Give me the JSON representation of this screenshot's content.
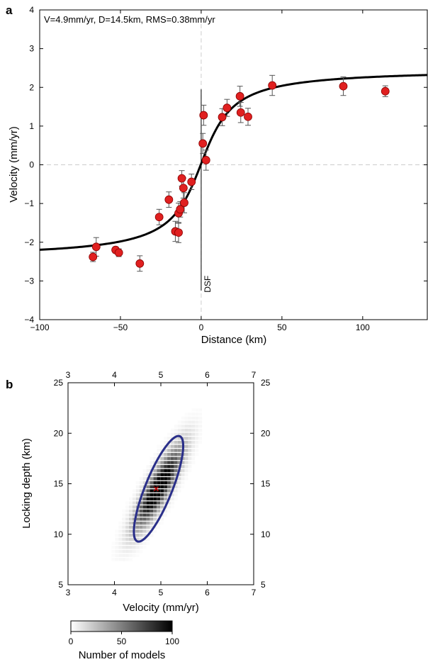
{
  "chart_data": [
    {
      "panel": "a",
      "type": "scatter",
      "annotation": "V=4.9mm/yr, D=14.5km, RMS=0.38mm/yr",
      "xlabel": "Distance (km)",
      "ylabel": "Velocity (mm/yr)",
      "xlim": [
        -100,
        140
      ],
      "ylim": [
        -4,
        4
      ],
      "xticks": [
        -100,
        -50,
        0,
        50,
        100
      ],
      "yticks": [
        -4,
        -3,
        -2,
        -1,
        0,
        1,
        2,
        3,
        4
      ],
      "fault_label": "DSF",
      "grid": false,
      "model_curve": {
        "v": 4.9,
        "d": 14.5,
        "offset": 0.03
      },
      "points": [
        {
          "x": -67,
          "y": -2.38,
          "err": 0.12
        },
        {
          "x": -65,
          "y": -2.12,
          "err": 0.24
        },
        {
          "x": -53,
          "y": -2.2,
          "err": 0.08
        },
        {
          "x": -51,
          "y": -2.27,
          "err": 0.1
        },
        {
          "x": -38,
          "y": -2.55,
          "err": 0.2
        },
        {
          "x": -26,
          "y": -1.35,
          "err": 0.2
        },
        {
          "x": -20,
          "y": -0.9,
          "err": 0.2
        },
        {
          "x": -16,
          "y": -1.72,
          "err": 0.26
        },
        {
          "x": -14,
          "y": -1.25,
          "err": 0.26
        },
        {
          "x": -14,
          "y": -1.75,
          "err": 0.26
        },
        {
          "x": -13,
          "y": -1.15,
          "err": 0.2
        },
        {
          "x": -12,
          "y": -0.35,
          "err": 0.2
        },
        {
          "x": -11,
          "y": -0.6,
          "err": 0.26
        },
        {
          "x": -10.5,
          "y": -0.98,
          "err": 0.26
        },
        {
          "x": -6,
          "y": -0.44,
          "err": 0.2
        },
        {
          "x": 1,
          "y": 0.55,
          "err": 0.26
        },
        {
          "x": 1.5,
          "y": 1.28,
          "err": 0.26
        },
        {
          "x": 3,
          "y": 0.12,
          "err": 0.26
        },
        {
          "x": 13,
          "y": 1.23,
          "err": 0.22
        },
        {
          "x": 16,
          "y": 1.47,
          "err": 0.22
        },
        {
          "x": 24,
          "y": 1.77,
          "err": 0.26
        },
        {
          "x": 24.5,
          "y": 1.35,
          "err": 0.26
        },
        {
          "x": 29,
          "y": 1.24,
          "err": 0.22
        },
        {
          "x": 44,
          "y": 2.05,
          "err": 0.26
        },
        {
          "x": 88,
          "y": 2.03,
          "err": 0.24
        },
        {
          "x": 114,
          "y": 1.9,
          "err": 0.14
        }
      ]
    },
    {
      "panel": "b",
      "type": "heatmap",
      "xlabel": "Velocity (mm/yr)",
      "ylabel": "Locking depth (km)",
      "xlim": [
        3,
        7
      ],
      "ylim": [
        5,
        25
      ],
      "xticks": [
        3,
        4,
        5,
        6,
        7
      ],
      "yticks": [
        5,
        10,
        15,
        20,
        25
      ],
      "best_fit": {
        "v": 4.9,
        "d": 14.5
      },
      "ellipse": {
        "center_v": 4.95,
        "center_d": 14.5,
        "color": "#2a2f8a"
      },
      "colorbar": {
        "label": "Number of models",
        "ticks": [
          0,
          50,
          100
        ],
        "min": 0,
        "max": 100
      }
    }
  ],
  "colors": {
    "point_fill": "#e02020",
    "ellipse": "#2a2f8a",
    "best_fit_marker": "#c00000"
  }
}
